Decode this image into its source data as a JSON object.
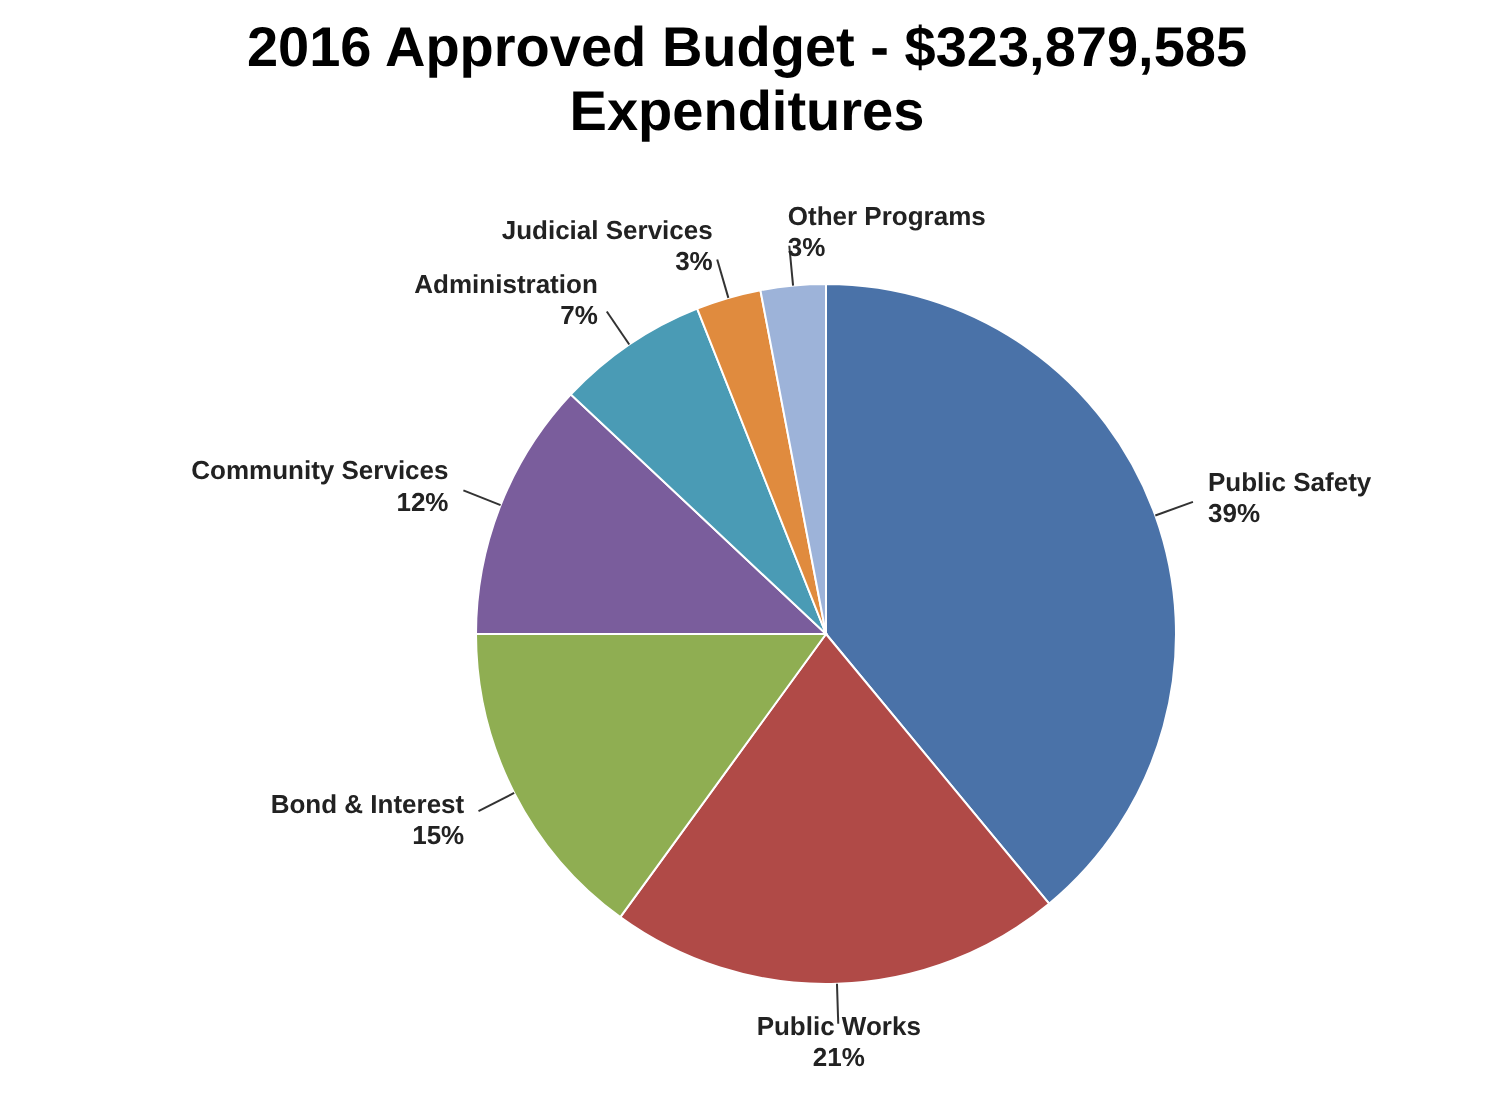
{
  "chart_data": {
    "type": "pie",
    "title": "2016 Approved Budget - $323,879,585 Expenditures",
    "categories": [
      "Public Safety",
      "Public Works",
      "Bond & Interest",
      "Community Services",
      "Administration",
      "Judicial Services",
      "Other Programs"
    ],
    "values": [
      39,
      21,
      15,
      12,
      7,
      3,
      3
    ],
    "value_labels": [
      "39%",
      "21%",
      "15%",
      "12%",
      "7%",
      "3%",
      "3%"
    ],
    "colors": [
      "#4a72a8",
      "#b04a47",
      "#8fae52",
      "#7a5d9c",
      "#4a9bb5",
      "#e08b3e",
      "#9db3d9"
    ],
    "legend": false
  }
}
